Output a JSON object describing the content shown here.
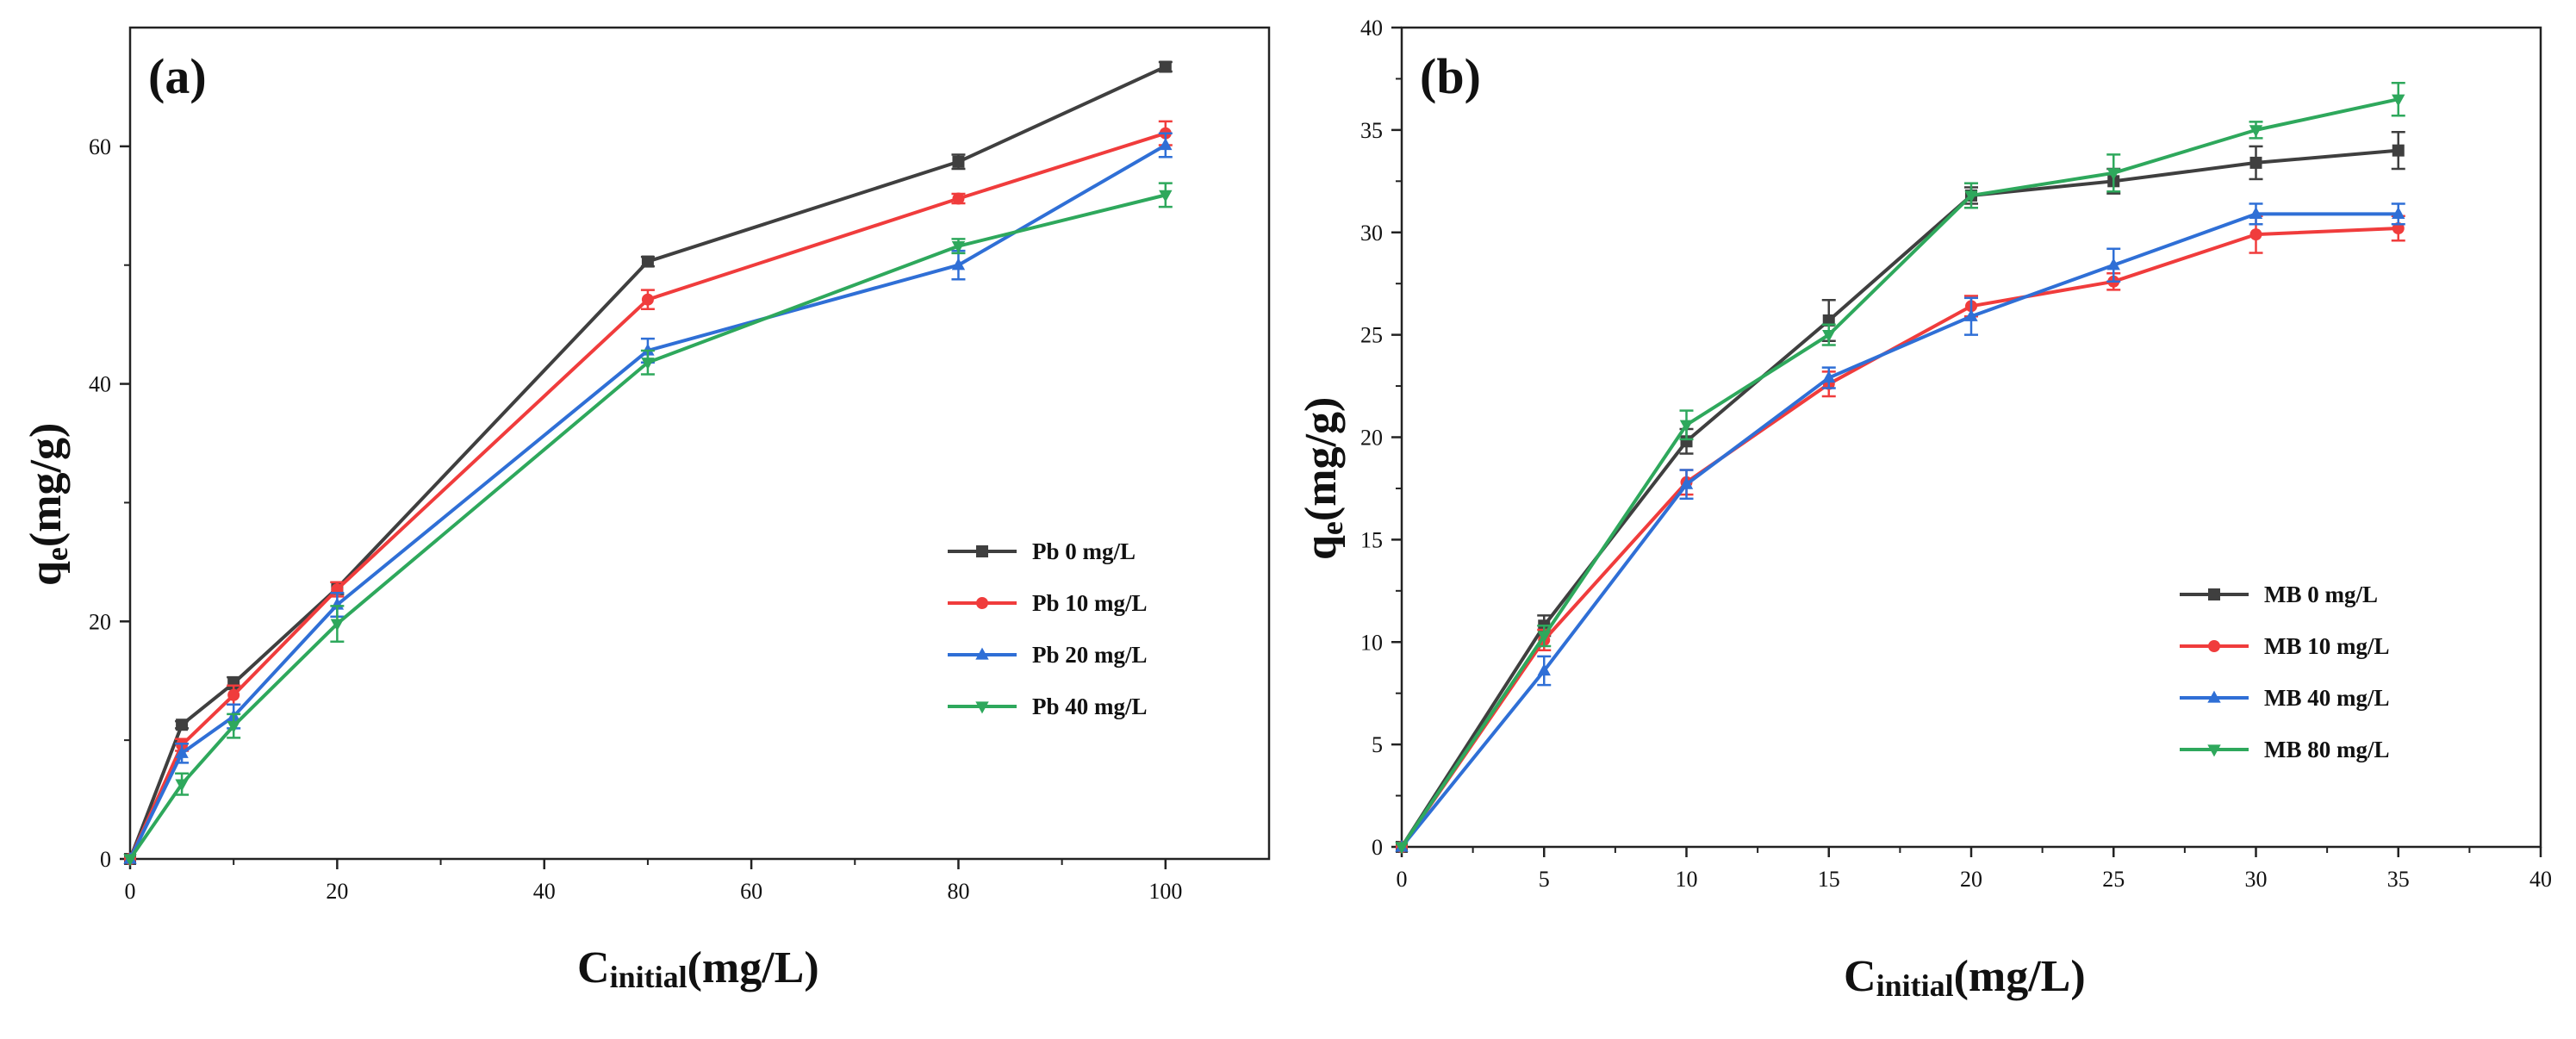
{
  "chart_data": [
    {
      "type": "line",
      "panel_label": "(a)",
      "xlabel_main": "C",
      "xlabel_sub": "initial",
      "xlabel_unit": "(mg/L)",
      "ylabel_main": "q",
      "ylabel_sub": "e",
      "ylabel_unit": "(mg/g)",
      "xlim": [
        0,
        110
      ],
      "ylim": [
        0,
        70
      ],
      "xticks": [
        0,
        20,
        40,
        60,
        80,
        100
      ],
      "yticks": [
        0,
        20,
        40,
        60
      ],
      "xtick_labels": [
        "0",
        "20",
        "40",
        "60",
        "80",
        "100"
      ],
      "ytick_labels": [
        "0",
        "20",
        "40",
        "60"
      ],
      "legend_position": "bottom-right",
      "x": [
        0,
        5,
        10,
        20,
        50,
        80,
        100
      ],
      "series": [
        {
          "name": "Pb 0 mg/L",
          "color": "#3f3f3f",
          "marker": "square",
          "values": [
            0,
            11.3,
            14.8,
            22.8,
            50.3,
            58.7,
            66.7
          ],
          "errors": [
            0,
            0.3,
            0.5,
            0.5,
            0.4,
            0.6,
            0.4
          ]
        },
        {
          "name": "Pb 10 mg/L",
          "color": "#f03c3c",
          "marker": "circle",
          "values": [
            0,
            9.6,
            13.8,
            22.7,
            47.1,
            55.6,
            61.1
          ],
          "errors": [
            0,
            0.5,
            0.8,
            0.6,
            0.8,
            0.4,
            1.0
          ]
        },
        {
          "name": "Pb 20 mg/L",
          "color": "#2f6fd6",
          "marker": "triangle-up",
          "values": [
            0,
            8.9,
            12.0,
            21.4,
            42.8,
            50.0,
            60.1
          ],
          "errors": [
            0,
            0.8,
            1.0,
            1.0,
            1.0,
            1.2,
            1.0
          ]
        },
        {
          "name": "Pb 40 mg/L",
          "color": "#2ea85c",
          "marker": "triangle-down",
          "values": [
            0,
            6.3,
            11.2,
            19.8,
            41.8,
            51.6,
            55.9
          ],
          "errors": [
            0,
            0.9,
            1.0,
            1.5,
            1.0,
            0.6,
            1.0
          ]
        }
      ]
    },
    {
      "type": "line",
      "panel_label": "(b)",
      "xlabel_main": "C",
      "xlabel_sub": "initial",
      "xlabel_unit": "(mg/L)",
      "ylabel_main": "q",
      "ylabel_sub": "e",
      "ylabel_unit": "(mg/g)",
      "xlim": [
        0,
        40
      ],
      "ylim": [
        0,
        40
      ],
      "xticks": [
        0,
        5,
        10,
        15,
        20,
        25,
        30,
        35,
        40
      ],
      "yticks": [
        0,
        5,
        10,
        15,
        20,
        25,
        30,
        35,
        40
      ],
      "xtick_labels": [
        "0",
        "5",
        "10",
        "15",
        "20",
        "25",
        "30",
        "35",
        "40"
      ],
      "ytick_labels": [
        "0",
        "5",
        "10",
        "15",
        "20",
        "25",
        "30",
        "35",
        "40"
      ],
      "legend_position": "bottom-right",
      "x": [
        0,
        5,
        10,
        15,
        20,
        25,
        30,
        35
      ],
      "series": [
        {
          "name": "MB 0 mg/L",
          "color": "#3f3f3f",
          "marker": "square",
          "values": [
            0,
            10.8,
            19.8,
            25.7,
            31.8,
            32.5,
            33.4,
            34.0
          ],
          "errors": [
            0,
            0.5,
            0.6,
            1.0,
            0.4,
            0.6,
            0.8,
            0.9
          ]
        },
        {
          "name": "MB 10 mg/L",
          "color": "#f03c3c",
          "marker": "circle",
          "values": [
            0,
            10.1,
            17.8,
            22.6,
            26.4,
            27.6,
            29.9,
            30.2
          ],
          "errors": [
            0,
            0.5,
            0.6,
            0.6,
            0.5,
            0.4,
            0.9,
            0.6
          ]
        },
        {
          "name": "MB 40 mg/L",
          "color": "#2f6fd6",
          "marker": "triangle-up",
          "values": [
            0,
            8.6,
            17.7,
            22.9,
            25.9,
            28.4,
            30.9,
            30.9
          ],
          "errors": [
            0,
            0.7,
            0.7,
            0.5,
            0.9,
            0.8,
            0.5,
            0.5
          ]
        },
        {
          "name": "MB 80 mg/L",
          "color": "#2ea85c",
          "marker": "triangle-down",
          "values": [
            0,
            10.3,
            20.6,
            25.0,
            31.8,
            32.9,
            35.0,
            36.5
          ],
          "errors": [
            0,
            0.5,
            0.7,
            0.5,
            0.6,
            0.9,
            0.4,
            0.8
          ]
        }
      ]
    }
  ]
}
